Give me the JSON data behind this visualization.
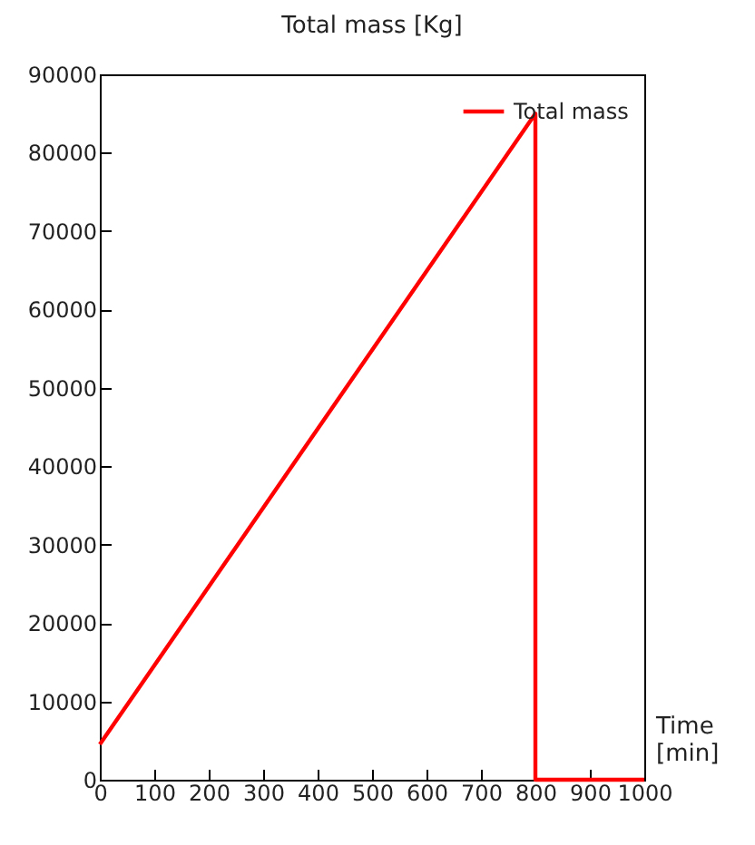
{
  "chart_data": {
    "type": "line",
    "title": "Total mass [Kg]",
    "xlabel": "Time [min]",
    "x": [
      0,
      800,
      800,
      1000
    ],
    "series": [
      {
        "name": "Total mass",
        "color": "#ff0000",
        "values": [
          4500,
          85000,
          0,
          0
        ]
      }
    ],
    "xlim": [
      0,
      1000
    ],
    "xticks": [
      0,
      100,
      200,
      300,
      400,
      500,
      600,
      700,
      800,
      900,
      1000
    ],
    "ylim": [
      0,
      90000
    ],
    "yticks": [
      0,
      10000,
      20000,
      30000,
      40000,
      50000,
      60000,
      70000,
      80000,
      90000
    ],
    "grid": false,
    "legend": "top right",
    "marker": "none",
    "line_style": "solid"
  }
}
